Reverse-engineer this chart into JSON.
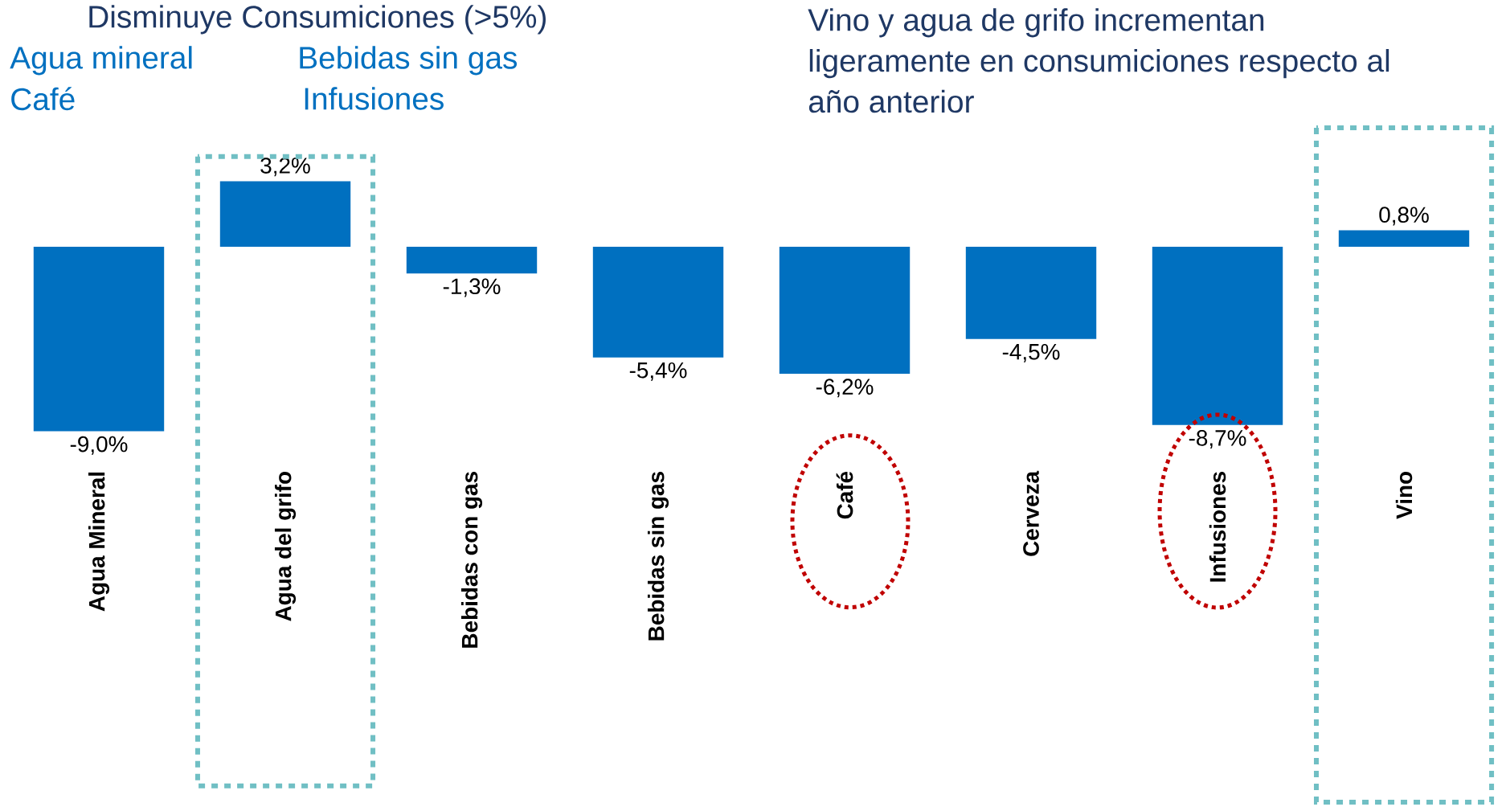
{
  "chart_data": {
    "type": "bar",
    "categories": [
      "Agua Mineral",
      "Agua del grifo",
      "Bebidas con gas",
      "Bebidas sin gas",
      "Café",
      "Cerveza",
      "Infusiones",
      "Vino"
    ],
    "values": [
      -9.0,
      3.2,
      -1.3,
      -5.4,
      -6.2,
      -4.5,
      -8.7,
      0.8
    ],
    "value_labels": [
      "-9,0%",
      "3,2%",
      "-1,3%",
      "-5,4%",
      "-6,2%",
      "-4,5%",
      "-8,7%",
      "0,8%"
    ],
    "color": "#0070c0",
    "annotations": [
      "Disminuye Consumiciones (>5%)",
      "Agua mineral",
      "Bebidas sin gas",
      "Café",
      "Infusiones",
      "Vino y agua de grifo incrementan ligeramente en consumiciones respecto al año anterior"
    ]
  }
}
